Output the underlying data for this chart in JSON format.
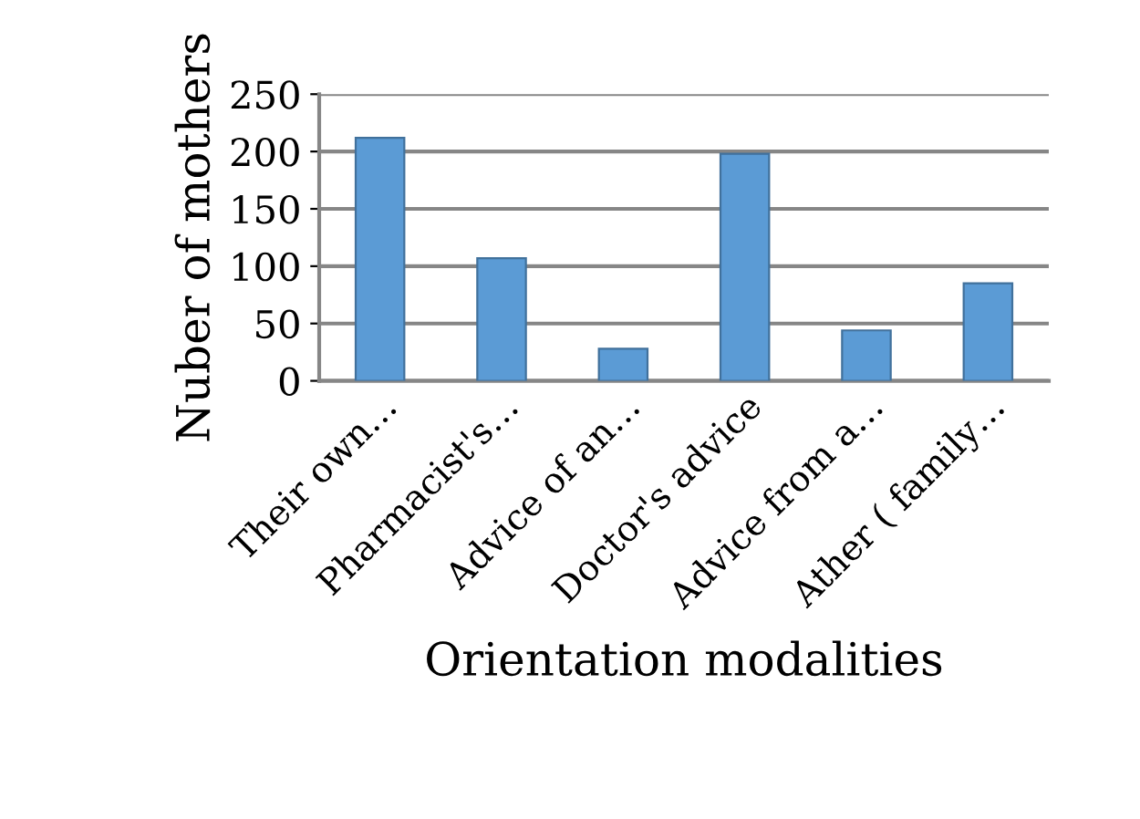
{
  "chart_data": {
    "type": "bar",
    "xlabel": "Orientation modalities",
    "ylabel": "Nuber of mothers",
    "categories": [
      "Their own…",
      "Pharmacist's…",
      "Advice of an…",
      "Doctor's advice",
      "Advice from a…",
      "Ather ( family…"
    ],
    "values": [
      212,
      107,
      28,
      198,
      44,
      85
    ],
    "color": "#5b9bd5",
    "ylim": [
      0,
      250
    ],
    "yticks": [
      0,
      50,
      100,
      150,
      200,
      250
    ],
    "grid": "y"
  }
}
